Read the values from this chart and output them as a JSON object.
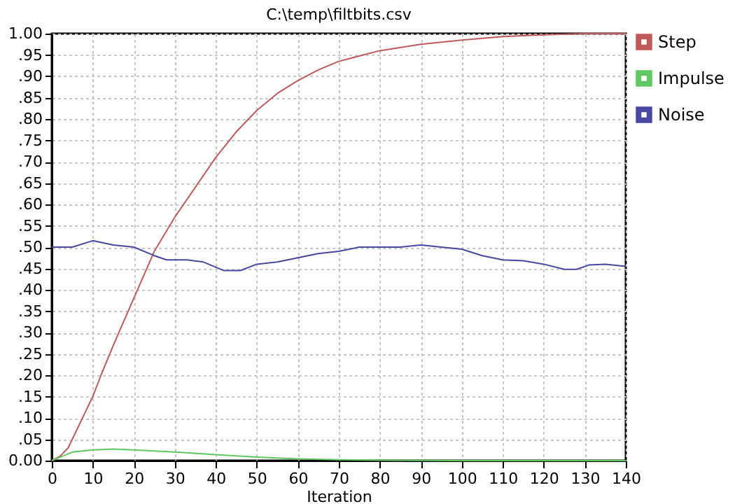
{
  "chart_data": {
    "type": "line",
    "title": "C:\\temp\\filtbits.csv",
    "xlabel": "Iteration",
    "xlim": [
      0,
      140
    ],
    "xticks": [
      0,
      10,
      20,
      30,
      40,
      50,
      60,
      70,
      80,
      90,
      100,
      110,
      120,
      130,
      140
    ],
    "ylim": [
      0,
      1
    ],
    "yticks": [
      {
        "value": 0,
        "label": "0.00"
      },
      {
        "value": 0.05,
        "label": ".05"
      },
      {
        "value": 0.1,
        "label": ".10"
      },
      {
        "value": 0.15,
        "label": ".15"
      },
      {
        "value": 0.2,
        "label": ".20"
      },
      {
        "value": 0.25,
        "label": ".25"
      },
      {
        "value": 0.3,
        "label": ".30"
      },
      {
        "value": 0.35,
        "label": ".35"
      },
      {
        "value": 0.4,
        "label": ".40"
      },
      {
        "value": 0.45,
        "label": ".45"
      },
      {
        "value": 0.5,
        "label": ".50"
      },
      {
        "value": 0.55,
        "label": ".55"
      },
      {
        "value": 0.6,
        "label": ".60"
      },
      {
        "value": 0.65,
        "label": ".65"
      },
      {
        "value": 0.7,
        "label": ".70"
      },
      {
        "value": 0.75,
        "label": ".75"
      },
      {
        "value": 0.8,
        "label": ".80"
      },
      {
        "value": 0.85,
        "label": ".85"
      },
      {
        "value": 0.9,
        "label": ".90"
      },
      {
        "value": 0.95,
        "label": ".95"
      },
      {
        "value": 1,
        "label": "1.00"
      }
    ],
    "grid": true,
    "legend": "top right",
    "marker": "none",
    "line_style": "solid",
    "series": [
      {
        "name": "Step",
        "color": "#c05a5a",
        "x": [
          0,
          2,
          4,
          6,
          8,
          10,
          12,
          15,
          20,
          25,
          30,
          35,
          40,
          45,
          50,
          55,
          60,
          65,
          70,
          80,
          90,
          100,
          110,
          120,
          130,
          140
        ],
        "values": [
          0,
          0.01,
          0.03,
          0.07,
          0.11,
          0.15,
          0.2,
          0.27,
          0.38,
          0.49,
          0.57,
          0.64,
          0.71,
          0.77,
          0.82,
          0.86,
          0.89,
          0.915,
          0.935,
          0.96,
          0.975,
          0.985,
          0.993,
          0.997,
          1.0,
          1.0
        ]
      },
      {
        "name": "Impulse",
        "color": "#60c860",
        "x": [
          0,
          2,
          5,
          10,
          15,
          20,
          30,
          40,
          50,
          60,
          70,
          80,
          100,
          140
        ],
        "values": [
          0,
          0.008,
          0.02,
          0.025,
          0.027,
          0.025,
          0.02,
          0.014,
          0.008,
          0.004,
          0.002,
          0.001,
          0,
          0
        ]
      },
      {
        "name": "Noise",
        "color": "#4848a0",
        "x": [
          0,
          5,
          10,
          15,
          20,
          25,
          28,
          33,
          37,
          42,
          46,
          50,
          55,
          60,
          65,
          70,
          75,
          80,
          85,
          90,
          95,
          100,
          105,
          110,
          115,
          120,
          125,
          128,
          131,
          135,
          140
        ],
        "values": [
          0.5,
          0.5,
          0.515,
          0.505,
          0.5,
          0.48,
          0.47,
          0.47,
          0.465,
          0.445,
          0.445,
          0.46,
          0.465,
          0.475,
          0.485,
          0.49,
          0.5,
          0.5,
          0.5,
          0.505,
          0.5,
          0.495,
          0.48,
          0.47,
          0.468,
          0.46,
          0.448,
          0.448,
          0.458,
          0.46,
          0.455
        ]
      }
    ]
  }
}
